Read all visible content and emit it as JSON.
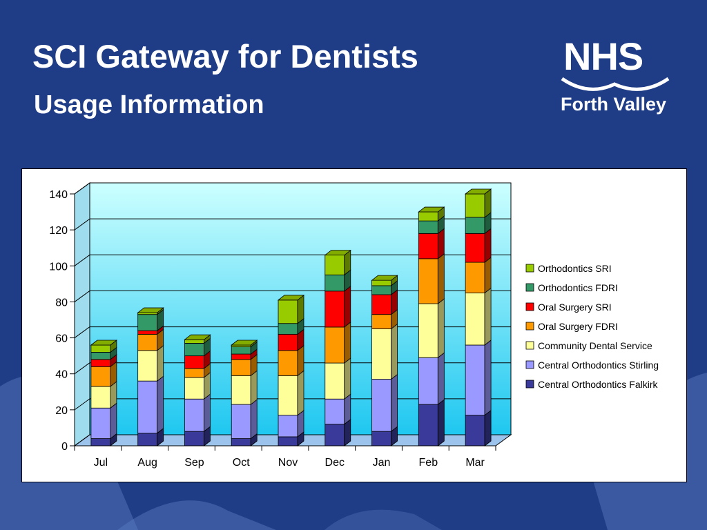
{
  "slide": {
    "title": "SCI Gateway for Dentists",
    "subtitle": "Usage Information",
    "background_color": "#1f3c86"
  },
  "logo": {
    "name": "NHS",
    "subtitle": "Forth Valley"
  },
  "chart_data": {
    "type": "bar",
    "stacked": true,
    "categories": [
      "Jul",
      "Aug",
      "Sep",
      "Oct",
      "Nov",
      "Dec",
      "Jan",
      "Feb",
      "Mar"
    ],
    "ylim": [
      0,
      140
    ],
    "yticks": [
      0,
      20,
      40,
      60,
      80,
      100,
      120,
      140
    ],
    "grid": true,
    "legend_position": "right",
    "series": [
      {
        "name": "Central Orthodontics Falkirk",
        "color": "#3a3a9a",
        "values": [
          4,
          7,
          8,
          4,
          5,
          12,
          8,
          23,
          17
        ]
      },
      {
        "name": "Central Orthodontics Stirling",
        "color": "#9999ff",
        "values": [
          17,
          29,
          18,
          19,
          12,
          14,
          29,
          26,
          39
        ]
      },
      {
        "name": "Community Dental Service",
        "color": "#ffff99",
        "values": [
          12,
          17,
          12,
          16,
          22,
          20,
          28,
          30,
          29
        ]
      },
      {
        "name": "Oral Surgery FDRI",
        "color": "#ff9900",
        "values": [
          11,
          9,
          5,
          9,
          14,
          20,
          8,
          25,
          17
        ]
      },
      {
        "name": "Oral Surgery SRI",
        "color": "#ff0000",
        "values": [
          4,
          2,
          7,
          3,
          9,
          20,
          11,
          14,
          16
        ]
      },
      {
        "name": "Orthodontics FDRI",
        "color": "#339966",
        "values": [
          4,
          9,
          7,
          4,
          6,
          9,
          5,
          7,
          9
        ]
      },
      {
        "name": "Orthodontics SRI",
        "color": "#99cc00",
        "values": [
          4,
          1,
          2,
          1,
          13,
          11,
          3,
          5,
          13
        ]
      }
    ]
  }
}
